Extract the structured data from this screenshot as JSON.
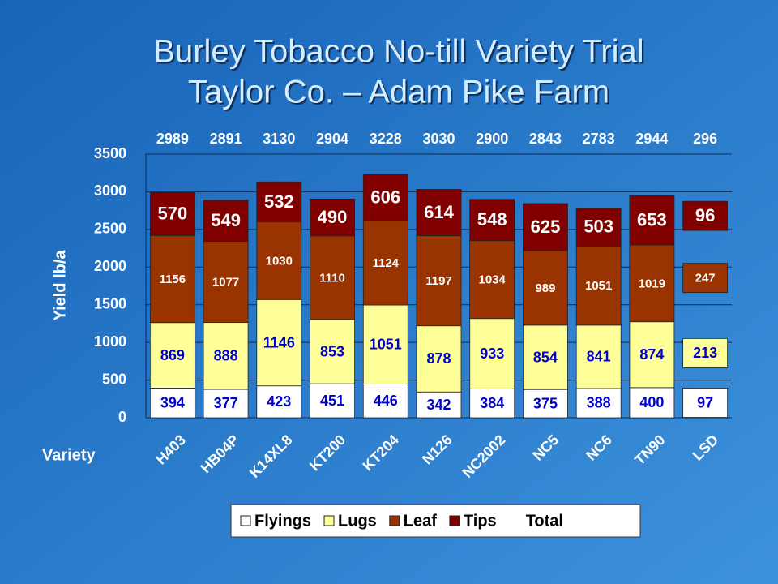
{
  "chart_data": {
    "type": "stacked_bar",
    "title": [
      "Burley Tobacco No-till Variety Trial",
      "Taylor Co. – Adam Pike Farm"
    ],
    "x_label": "Variety",
    "y_label": "Yield lb/a",
    "categories": [
      "H403",
      "HB04P",
      "K14XL8",
      "KT200",
      "KT204",
      "N126",
      "NC2002",
      "NC5",
      "NC6",
      "TN90",
      "LSD"
    ],
    "series": [
      {
        "name": "Flyings",
        "color": "#ffffff",
        "values": [
          394,
          377,
          423,
          451,
          446,
          342,
          384,
          375,
          388,
          400,
          97
        ]
      },
      {
        "name": "Lugs",
        "color": "#ffff99",
        "values": [
          869,
          888,
          1146,
          853,
          1051,
          878,
          933,
          854,
          841,
          874,
          213
        ]
      },
      {
        "name": "Leaf",
        "color": "#993300",
        "values": [
          1156,
          1077,
          1030,
          1110,
          1124,
          1197,
          1034,
          989,
          1051,
          1019,
          247
        ]
      },
      {
        "name": "Tips",
        "color": "#800000",
        "values": [
          570,
          549,
          532,
          490,
          606,
          614,
          548,
          625,
          503,
          653,
          96
        ]
      }
    ],
    "totals": {
      "name": "Total",
      "values": [
        2989,
        2891,
        3130,
        2904,
        3228,
        3030,
        2900,
        2843,
        2783,
        2944,
        296
      ]
    },
    "ylim": [
      0,
      3500
    ],
    "yticks": [
      0,
      500,
      1000,
      1500,
      2000,
      2500,
      3000,
      3500
    ],
    "grid": true
  }
}
